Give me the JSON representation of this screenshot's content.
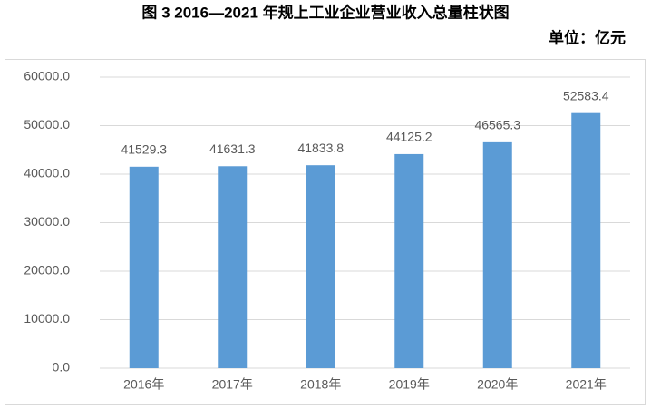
{
  "chart_data": {
    "type": "bar",
    "title": "图 3   2016—2021 年规上工业企业营业收入总量柱状图",
    "unit": "单位：亿元",
    "categories": [
      "2016年",
      "2017年",
      "2018年",
      "2019年",
      "2020年",
      "2021年"
    ],
    "values": [
      41529.3,
      41631.3,
      41833.8,
      44125.2,
      46565.3,
      52583.4
    ],
    "color": "#5b9bd5",
    "ylim": [
      0,
      60000
    ],
    "yticks": [
      {
        "value": 0,
        "label": "0.0"
      },
      {
        "value": 10000,
        "label": "10000.0"
      },
      {
        "value": 20000,
        "label": "20000.0"
      },
      {
        "value": 30000,
        "label": "30000.0"
      },
      {
        "value": 40000,
        "label": "40000.0"
      },
      {
        "value": 50000,
        "label": "50000.0"
      },
      {
        "value": 60000,
        "label": "60000.0"
      }
    ],
    "grid": true
  }
}
